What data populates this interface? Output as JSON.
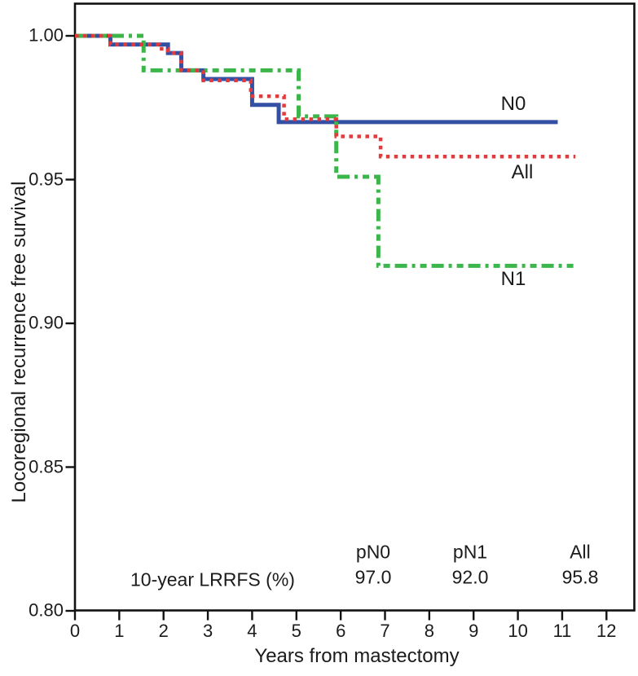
{
  "chart_data": {
    "type": "line",
    "subtype": "kaplan-meier-step-curves",
    "title": "",
    "xlabel": "Years from mastectomy",
    "ylabel": "Locoregional recurrence free survival",
    "xlim": [
      0,
      12
    ],
    "ylim": [
      0.8,
      1.0
    ],
    "grid": false,
    "legend_position": "inline-right-of-curves",
    "xticks": [
      0,
      1,
      2,
      3,
      4,
      5,
      6,
      7,
      8,
      9,
      10,
      11,
      12
    ],
    "xtick_labels": [
      "0",
      "1",
      "2",
      "3",
      "4",
      "5",
      "6",
      "7",
      "8",
      "9",
      "10",
      "11",
      "12"
    ],
    "yticks": [
      1.0,
      0.95,
      0.9,
      0.85,
      0.8
    ],
    "ytick_labels": [
      "1.00",
      "0.95",
      "0.90",
      "0.85",
      "0.80"
    ],
    "axis_color": "#111111",
    "series": [
      {
        "name": "N0",
        "color": "#3450a5",
        "style": "solid",
        "dash": "",
        "width": 5,
        "steps": [
          [
            0,
            1.0
          ],
          [
            0.8,
            0.997
          ],
          [
            2.1,
            0.994
          ],
          [
            2.4,
            0.988
          ],
          [
            2.9,
            0.985
          ],
          [
            4.0,
            0.976
          ],
          [
            4.6,
            0.97
          ]
        ],
        "end_x": 10.9,
        "final_value": 0.97
      },
      {
        "name": "N1",
        "color": "#3cb54a",
        "style": "dash-dot",
        "dash": "15 6 4 6 8 6",
        "width": 5,
        "steps": [
          [
            0,
            1.0
          ],
          [
            1.55,
            0.988
          ],
          [
            5.05,
            0.972
          ],
          [
            5.9,
            0.951
          ],
          [
            6.85,
            0.92
          ]
        ],
        "end_x": 11.3,
        "final_value": 0.92
      },
      {
        "name": "All",
        "color": "#e23b3e",
        "style": "dotted",
        "dash": "4.5 5.5",
        "width": 4.5,
        "steps": [
          [
            0,
            1.0
          ],
          [
            0.8,
            0.997
          ],
          [
            1.9,
            0.9955
          ],
          [
            2.1,
            0.994
          ],
          [
            2.4,
            0.988
          ],
          [
            2.9,
            0.9845
          ],
          [
            3.97,
            0.979
          ],
          [
            4.72,
            0.971
          ],
          [
            5.9,
            0.965
          ],
          [
            6.9,
            0.958
          ]
        ],
        "end_x": 11.3,
        "final_value": 0.958
      }
    ],
    "annotation": {
      "row_label": "10-year LRRFS (%)",
      "columns": [
        {
          "header": "pN0",
          "value": "97.0"
        },
        {
          "header": "pN1",
          "value": "92.0"
        },
        {
          "header": "All",
          "value": "95.8"
        }
      ]
    }
  }
}
